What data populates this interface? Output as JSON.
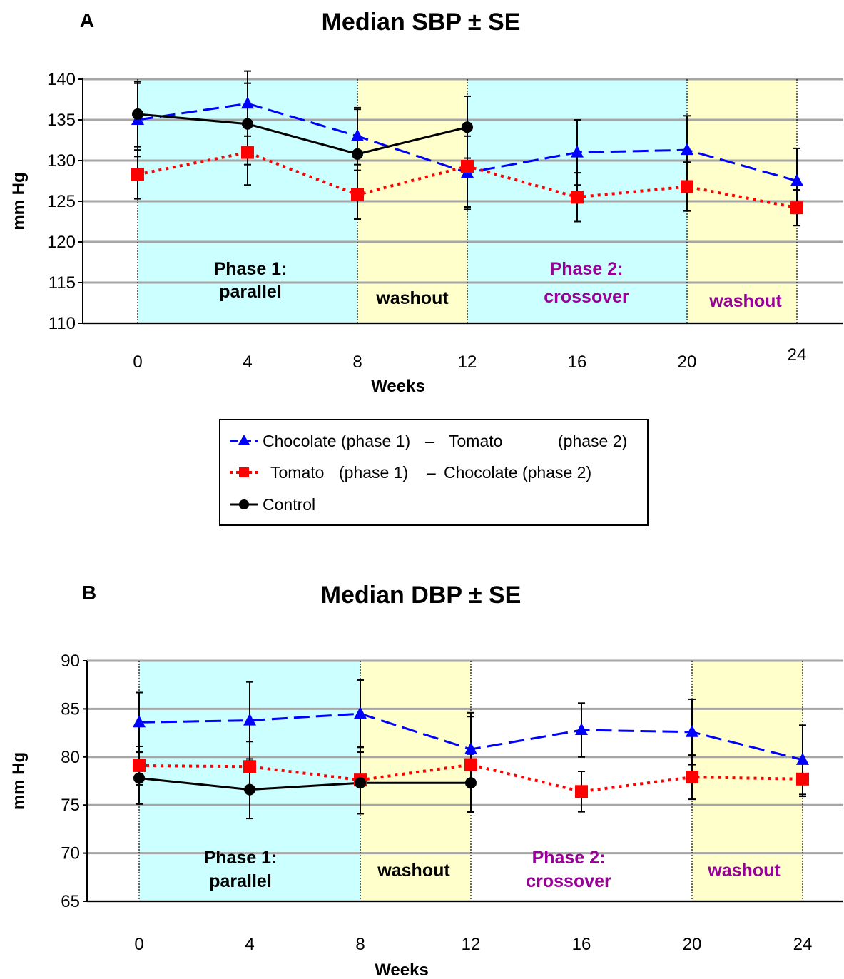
{
  "chart_data": [
    {
      "type": "line",
      "panel": "A",
      "title": "Median SBP ± SE",
      "xlabel": "Weeks",
      "ylabel": "mm Hg",
      "ylim": [
        110,
        140
      ],
      "yticks": [
        "110",
        "115",
        "120",
        "125",
        "130",
        "135",
        "140"
      ],
      "xticks": [
        "0",
        "4",
        "8",
        "12",
        "16",
        "20",
        "24"
      ],
      "grid": "horizontal",
      "periods": [
        {
          "label": "Phase 1:\nparallel",
          "label_color": "#000000",
          "fill": "#ccffff",
          "from": 0,
          "to": 8
        },
        {
          "label": "washout",
          "label_color": "#000000",
          "fill": "#ffffcc",
          "from": 8,
          "to": 12
        },
        {
          "label": "Phase 2:\ncrossover",
          "label_color": "#990099",
          "fill": "#ccffff",
          "from": 12,
          "to": 20
        },
        {
          "label": "washout",
          "label_color": "#990099",
          "fill": "#ffffcc",
          "from": 20,
          "to": 24
        }
      ],
      "series": [
        {
          "name": "Chocolate (phase 1) – Tomato (phase 2)",
          "color": "#0000ff",
          "marker": "triangle",
          "line": "dashed",
          "x": [
            0,
            4,
            8,
            12,
            16,
            20,
            24
          ],
          "y": [
            135.0,
            137.0,
            133.0,
            128.5,
            131.0,
            131.3,
            127.5
          ],
          "err": [
            4.5,
            4.0,
            3.5,
            4.5,
            4.0,
            4.2,
            4.0
          ]
        },
        {
          "name": "Tomato (phase 1) – Chocolate (phase 2)",
          "color": "#ff0000",
          "marker": "square",
          "line": "dotted",
          "x": [
            0,
            4,
            8,
            12,
            16,
            20,
            24
          ],
          "y": [
            128.3,
            131.0,
            125.8,
            129.3,
            125.5,
            126.8,
            124.2
          ],
          "err": [
            3.0,
            4.0,
            3.0,
            5.0,
            3.0,
            3.0,
            2.2
          ]
        },
        {
          "name": "Control",
          "color": "#000000",
          "marker": "circle",
          "line": "solid",
          "x": [
            0,
            4,
            8,
            12
          ],
          "y": [
            135.7,
            134.5,
            130.8,
            134.1
          ],
          "err": [
            4.0,
            5.0,
            5.5,
            3.8
          ]
        }
      ]
    },
    {
      "type": "line",
      "panel": "B",
      "title": "Median DBP ± SE",
      "xlabel": "Weeks",
      "ylabel": "mm Hg",
      "ylim": [
        65,
        90
      ],
      "yticks": [
        "65",
        "70",
        "75",
        "80",
        "85",
        "90"
      ],
      "xticks": [
        "0",
        "4",
        "8",
        "12",
        "16",
        "20",
        "24"
      ],
      "grid": "horizontal",
      "periods": [
        {
          "label": "Phase 1:\nparallel",
          "label_color": "#000000",
          "fill": "#ccffff",
          "from": 0,
          "to": 8
        },
        {
          "label": "washout",
          "label_color": "#000000",
          "fill": "#ffffcc",
          "from": 8,
          "to": 12
        },
        {
          "label": "Phase 2:\ncrossover",
          "label_color": "#990099",
          "fill": "#ffffff",
          "from": 12,
          "to": 20
        },
        {
          "label": "washout",
          "label_color": "#990099",
          "fill": "#ffffcc",
          "from": 20,
          "to": 24
        }
      ],
      "series": [
        {
          "name": "Chocolate (phase 1) – Tomato (phase 2)",
          "color": "#0000ff",
          "marker": "triangle",
          "line": "dashed",
          "x": [
            0,
            4,
            8,
            12,
            16,
            20,
            24
          ],
          "y": [
            83.6,
            83.8,
            84.5,
            80.8,
            82.8,
            82.6,
            79.7
          ],
          "err": [
            3.1,
            4.0,
            3.5,
            3.8,
            2.8,
            3.4,
            3.6
          ]
        },
        {
          "name": "Tomato (phase 1) – Chocolate (phase 2)",
          "color": "#ff0000",
          "marker": "square",
          "line": "dotted",
          "x": [
            0,
            4,
            8,
            12,
            16,
            20,
            24
          ],
          "y": [
            79.1,
            79.0,
            77.6,
            79.2,
            76.4,
            77.9,
            77.7
          ],
          "err": [
            2.0,
            2.6,
            3.5,
            5.0,
            2.1,
            2.3,
            1.8
          ]
        },
        {
          "name": "Control",
          "color": "#000000",
          "marker": "circle",
          "line": "solid",
          "x": [
            0,
            4,
            8,
            12
          ],
          "y": [
            77.8,
            76.6,
            77.3,
            77.3
          ],
          "err": [
            2.7,
            3.0,
            3.2,
            3.0
          ]
        }
      ]
    }
  ],
  "legend": {
    "entries": [
      {
        "part1": "Chocolate (phase 1)",
        "dash": "–",
        "part2": "Tomato",
        "part3": "(phase 2)",
        "color": "#0000ff",
        "marker": "triangle-icon"
      },
      {
        "part1": "Tomato",
        "part2": "(phase 1)",
        "dash": "–",
        "part3": "Chocolate (phase 2)",
        "color": "#ff0000",
        "marker": "square-icon"
      },
      {
        "part1": "Control",
        "color": "#000000",
        "marker": "circle-icon"
      }
    ]
  }
}
